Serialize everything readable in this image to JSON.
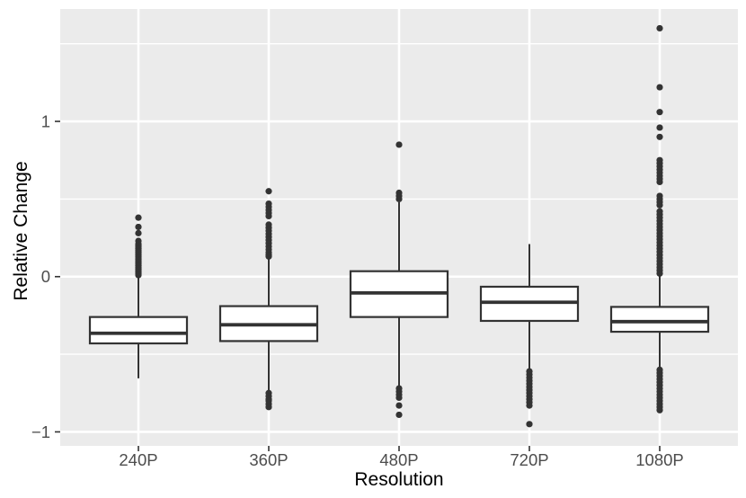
{
  "colors": {
    "panel_bg": "#EBEBEB",
    "gridline": "#FFFFFF",
    "stroke": "#333333",
    "box_fill": "#FFFFFF",
    "tick": "#333333",
    "tick_label": "#4D4D4D",
    "axis_title": "#000000"
  },
  "chart_data": {
    "type": "boxplot",
    "title": "",
    "xlabel": "Resolution",
    "ylabel": "Relative Change",
    "categories": [
      "240P",
      "360P",
      "480P",
      "720P",
      "1080P"
    ],
    "y_ticks": [
      -1,
      0,
      1
    ],
    "y_tick_labels": [
      "−1",
      "0",
      "1"
    ],
    "y_minor": [
      -0.5,
      0.5,
      1.5
    ],
    "ylim": [
      -1.09,
      1.724
    ],
    "grid": "on",
    "legend": "none",
    "series": [
      {
        "category": "240P",
        "whisker_low": -0.655,
        "q1": -0.43,
        "median": -0.365,
        "q3": -0.26,
        "whisker_high": 0.0,
        "outliers": [
          0.38,
          0.32,
          0.28,
          0.23,
          0.21,
          0.2,
          0.19,
          0.18,
          0.17,
          0.16,
          0.15,
          0.14,
          0.13,
          0.12,
          0.11,
          0.1,
          0.09,
          0.08,
          0.07,
          0.06,
          0.05,
          0.04,
          0.03,
          0.02,
          0.01
        ]
      },
      {
        "category": "360P",
        "whisker_low": -0.74,
        "q1": -0.415,
        "median": -0.31,
        "q3": -0.19,
        "whisker_high": 0.125,
        "outliers": [
          0.55,
          0.47,
          0.45,
          0.43,
          0.41,
          0.39,
          0.335,
          0.315,
          0.295,
          0.275,
          0.255,
          0.235,
          0.215,
          0.195,
          0.175,
          0.155,
          0.14,
          0.13,
          -0.75,
          -0.77,
          -0.79,
          -0.8,
          -0.82,
          -0.84
        ]
      },
      {
        "category": "480P",
        "whisker_low": -0.715,
        "q1": -0.26,
        "median": -0.105,
        "q3": 0.035,
        "whisker_high": 0.48,
        "outliers": [
          0.85,
          0.54,
          0.52,
          0.5,
          -0.72,
          -0.74,
          -0.76,
          -0.78,
          -0.83,
          -0.89
        ]
      },
      {
        "category": "720P",
        "whisker_low": -0.605,
        "q1": -0.285,
        "median": -0.165,
        "q3": -0.065,
        "whisker_high": 0.21,
        "outliers": [
          -0.61,
          -0.63,
          -0.65,
          -0.67,
          -0.69,
          -0.71,
          -0.73,
          -0.75,
          -0.77,
          -0.79,
          -0.81,
          -0.83,
          -0.95
        ]
      },
      {
        "category": "1080P",
        "whisker_low": -0.59,
        "q1": -0.355,
        "median": -0.29,
        "q3": -0.195,
        "whisker_high": 0.015,
        "outliers": [
          1.6,
          1.22,
          1.06,
          0.96,
          0.9,
          0.75,
          0.73,
          0.71,
          0.69,
          0.67,
          0.65,
          0.63,
          0.61,
          0.52,
          0.5,
          0.48,
          0.46,
          0.42,
          0.4,
          0.38,
          0.36,
          0.34,
          0.32,
          0.3,
          0.28,
          0.26,
          0.24,
          0.22,
          0.2,
          0.18,
          0.16,
          0.14,
          0.12,
          0.1,
          0.08,
          0.06,
          0.04,
          0.02,
          -0.6,
          -0.62,
          -0.64,
          -0.66,
          -0.68,
          -0.7,
          -0.72,
          -0.74,
          -0.76,
          -0.78,
          -0.8,
          -0.82,
          -0.84,
          -0.86
        ]
      }
    ]
  }
}
